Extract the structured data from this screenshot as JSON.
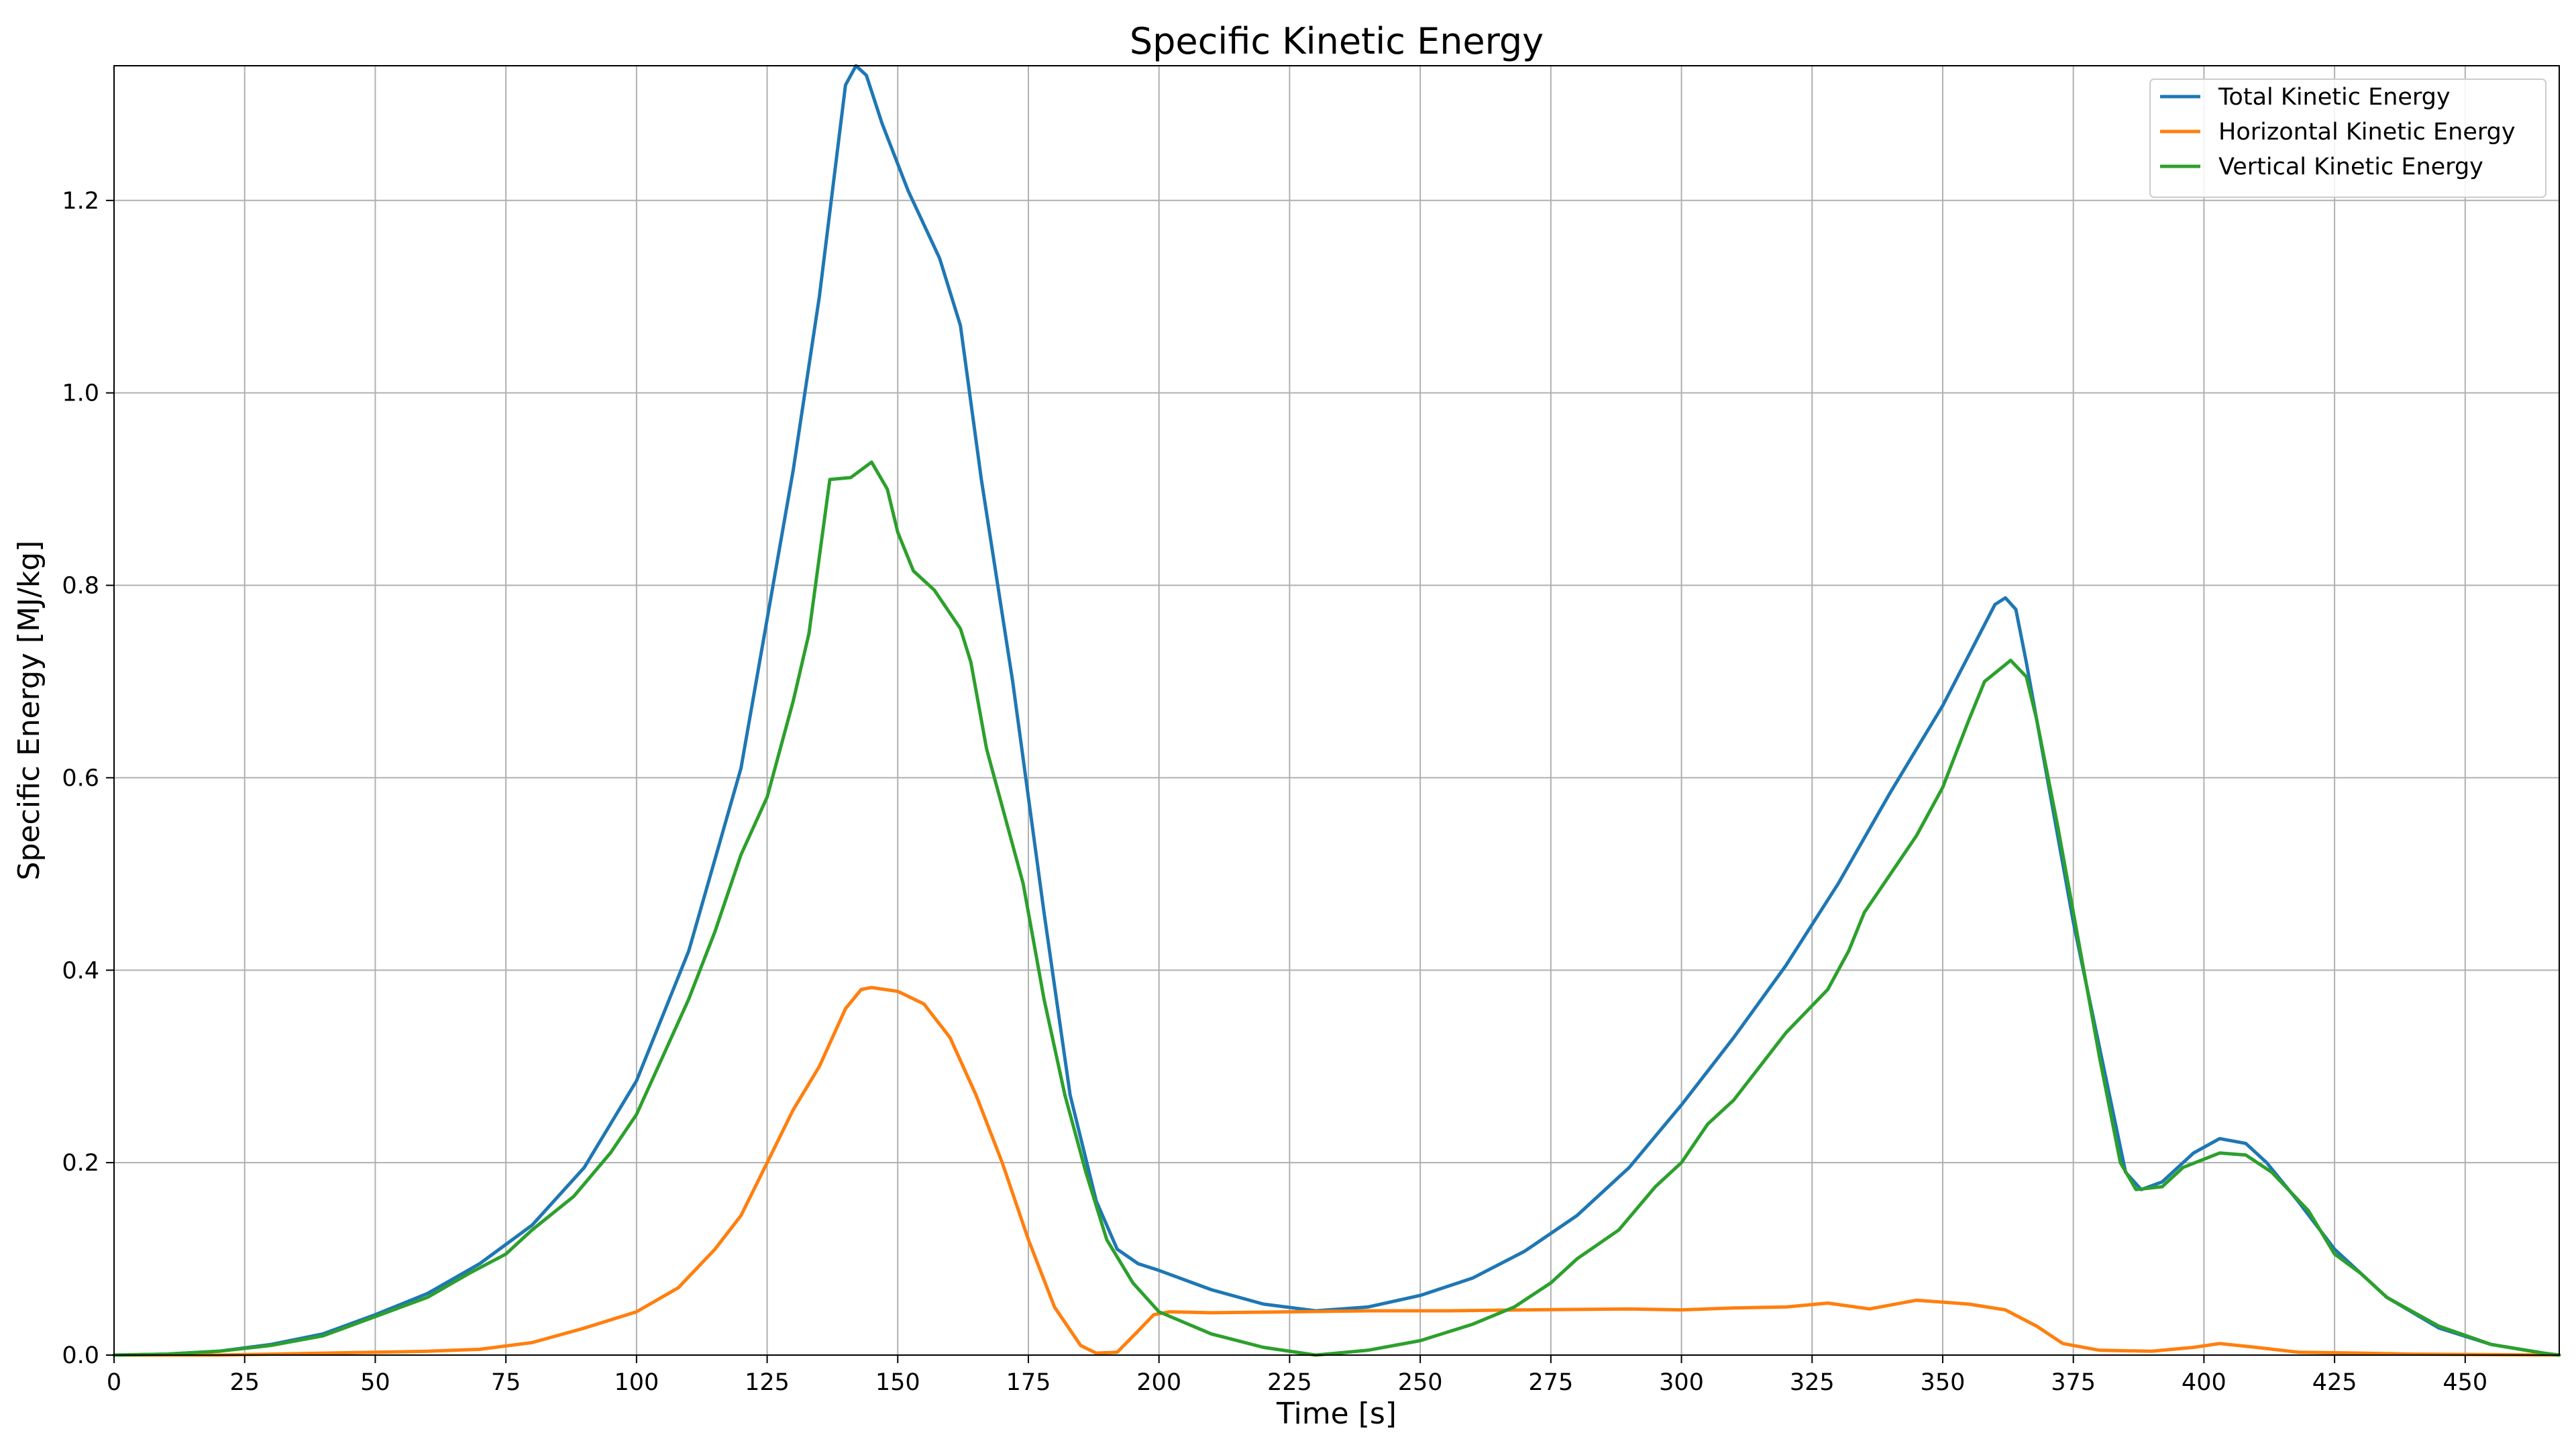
{
  "chart_data": {
    "type": "line",
    "title": "Specific Kinetic Energy",
    "xlabel": "Time [s]",
    "ylabel": "Specific Energy [MJ/kg]",
    "xlim": [
      0,
      468
    ],
    "ylim": [
      0,
      1.34
    ],
    "xticks": [
      "0",
      "25",
      "50",
      "75",
      "100",
      "125",
      "150",
      "175",
      "200",
      "225",
      "250",
      "275",
      "300",
      "325",
      "350",
      "375",
      "400",
      "425",
      "450"
    ],
    "yticks": [
      "0.0",
      "0.2",
      "0.4",
      "0.6",
      "0.8",
      "1.0",
      "1.2"
    ],
    "grid": true,
    "legend_position": "top-right",
    "series": [
      {
        "name": "Total Kinetic Energy",
        "color": "#1f77b4",
        "points": [
          [
            0,
            0
          ],
          [
            10,
            0.001
          ],
          [
            20,
            0.004
          ],
          [
            30,
            0.011
          ],
          [
            40,
            0.022
          ],
          [
            50,
            0.042
          ],
          [
            60,
            0.064
          ],
          [
            70,
            0.095
          ],
          [
            80,
            0.135
          ],
          [
            90,
            0.195
          ],
          [
            100,
            0.285
          ],
          [
            110,
            0.42
          ],
          [
            120,
            0.61
          ],
          [
            130,
            0.92
          ],
          [
            135,
            1.1
          ],
          [
            140,
            1.32
          ],
          [
            142,
            1.34
          ],
          [
            144,
            1.33
          ],
          [
            147,
            1.28
          ],
          [
            152,
            1.21
          ],
          [
            158,
            1.14
          ],
          [
            162,
            1.07
          ],
          [
            166,
            0.91
          ],
          [
            172,
            0.7
          ],
          [
            178,
            0.46
          ],
          [
            183,
            0.27
          ],
          [
            188,
            0.16
          ],
          [
            192,
            0.11
          ],
          [
            196,
            0.095
          ],
          [
            200,
            0.088
          ],
          [
            210,
            0.068
          ],
          [
            220,
            0.053
          ],
          [
            230,
            0.046
          ],
          [
            240,
            0.05
          ],
          [
            250,
            0.062
          ],
          [
            260,
            0.08
          ],
          [
            270,
            0.108
          ],
          [
            280,
            0.145
          ],
          [
            290,
            0.195
          ],
          [
            300,
            0.26
          ],
          [
            310,
            0.33
          ],
          [
            320,
            0.405
          ],
          [
            330,
            0.49
          ],
          [
            340,
            0.585
          ],
          [
            350,
            0.675
          ],
          [
            360,
            0.78
          ],
          [
            362,
            0.787
          ],
          [
            364,
            0.775
          ],
          [
            366,
            0.72
          ],
          [
            370,
            0.6
          ],
          [
            375,
            0.45
          ],
          [
            380,
            0.32
          ],
          [
            385,
            0.19
          ],
          [
            388,
            0.172
          ],
          [
            392,
            0.18
          ],
          [
            398,
            0.21
          ],
          [
            403,
            0.225
          ],
          [
            408,
            0.22
          ],
          [
            412,
            0.2
          ],
          [
            418,
            0.16
          ],
          [
            425,
            0.11
          ],
          [
            435,
            0.06
          ],
          [
            445,
            0.028
          ],
          [
            455,
            0.011
          ],
          [
            465,
            0.002
          ],
          [
            468,
            0
          ]
        ]
      },
      {
        "name": "Horizontal Kinetic Energy",
        "color": "#ff7f0e",
        "points": [
          [
            0,
            0
          ],
          [
            20,
            0.0
          ],
          [
            30,
            0.001
          ],
          [
            50,
            0.003
          ],
          [
            60,
            0.004
          ],
          [
            70,
            0.006
          ],
          [
            80,
            0.013
          ],
          [
            90,
            0.028
          ],
          [
            100,
            0.045
          ],
          [
            108,
            0.07
          ],
          [
            115,
            0.11
          ],
          [
            120,
            0.145
          ],
          [
            125,
            0.2
          ],
          [
            130,
            0.255
          ],
          [
            135,
            0.3
          ],
          [
            140,
            0.36
          ],
          [
            143,
            0.38
          ],
          [
            145,
            0.382
          ],
          [
            150,
            0.378
          ],
          [
            155,
            0.365
          ],
          [
            160,
            0.33
          ],
          [
            165,
            0.27
          ],
          [
            170,
            0.2
          ],
          [
            175,
            0.12
          ],
          [
            180,
            0.05
          ],
          [
            185,
            0.01
          ],
          [
            188,
            0.002
          ],
          [
            192,
            0.003
          ],
          [
            196,
            0.025
          ],
          [
            199,
            0.042
          ],
          [
            202,
            0.045
          ],
          [
            210,
            0.044
          ],
          [
            225,
            0.045
          ],
          [
            240,
            0.046
          ],
          [
            255,
            0.046
          ],
          [
            270,
            0.047
          ],
          [
            290,
            0.048
          ],
          [
            300,
            0.047
          ],
          [
            310,
            0.049
          ],
          [
            320,
            0.05
          ],
          [
            328,
            0.054
          ],
          [
            336,
            0.048
          ],
          [
            345,
            0.057
          ],
          [
            355,
            0.053
          ],
          [
            362,
            0.047
          ],
          [
            368,
            0.03
          ],
          [
            373,
            0.012
          ],
          [
            380,
            0.005
          ],
          [
            390,
            0.004
          ],
          [
            398,
            0.008
          ],
          [
            403,
            0.012
          ],
          [
            410,
            0.008
          ],
          [
            418,
            0.003
          ],
          [
            430,
            0.002
          ],
          [
            440,
            0.001
          ],
          [
            468,
            0
          ]
        ]
      },
      {
        "name": "Vertical Kinetic Energy",
        "color": "#2ca02c",
        "points": [
          [
            0,
            0
          ],
          [
            10,
            0.001
          ],
          [
            20,
            0.004
          ],
          [
            30,
            0.01
          ],
          [
            40,
            0.02
          ],
          [
            50,
            0.04
          ],
          [
            60,
            0.06
          ],
          [
            68,
            0.085
          ],
          [
            75,
            0.105
          ],
          [
            80,
            0.13
          ],
          [
            88,
            0.165
          ],
          [
            95,
            0.21
          ],
          [
            100,
            0.25
          ],
          [
            105,
            0.31
          ],
          [
            110,
            0.37
          ],
          [
            115,
            0.44
          ],
          [
            120,
            0.52
          ],
          [
            125,
            0.58
          ],
          [
            130,
            0.68
          ],
          [
            133,
            0.75
          ],
          [
            137,
            0.91
          ],
          [
            141,
            0.912
          ],
          [
            145,
            0.928
          ],
          [
            148,
            0.9
          ],
          [
            150,
            0.855
          ],
          [
            153,
            0.815
          ],
          [
            157,
            0.795
          ],
          [
            162,
            0.755
          ],
          [
            164,
            0.72
          ],
          [
            167,
            0.63
          ],
          [
            170,
            0.57
          ],
          [
            174,
            0.49
          ],
          [
            178,
            0.37
          ],
          [
            182,
            0.27
          ],
          [
            186,
            0.19
          ],
          [
            190,
            0.12
          ],
          [
            195,
            0.075
          ],
          [
            200,
            0.045
          ],
          [
            210,
            0.022
          ],
          [
            220,
            0.008
          ],
          [
            230,
            0.0
          ],
          [
            240,
            0.005
          ],
          [
            250,
            0.015
          ],
          [
            260,
            0.032
          ],
          [
            268,
            0.05
          ],
          [
            275,
            0.075
          ],
          [
            280,
            0.1
          ],
          [
            288,
            0.13
          ],
          [
            295,
            0.175
          ],
          [
            300,
            0.2
          ],
          [
            305,
            0.24
          ],
          [
            310,
            0.265
          ],
          [
            315,
            0.3
          ],
          [
            320,
            0.335
          ],
          [
            328,
            0.38
          ],
          [
            332,
            0.42
          ],
          [
            335,
            0.46
          ],
          [
            340,
            0.5
          ],
          [
            345,
            0.54
          ],
          [
            350,
            0.59
          ],
          [
            355,
            0.66
          ],
          [
            358,
            0.7
          ],
          [
            363,
            0.722
          ],
          [
            366,
            0.705
          ],
          [
            368,
            0.66
          ],
          [
            372,
            0.55
          ],
          [
            376,
            0.43
          ],
          [
            380,
            0.31
          ],
          [
            384,
            0.2
          ],
          [
            387,
            0.172
          ],
          [
            392,
            0.175
          ],
          [
            396,
            0.195
          ],
          [
            403,
            0.21
          ],
          [
            408,
            0.208
          ],
          [
            413,
            0.19
          ],
          [
            420,
            0.15
          ],
          [
            425,
            0.105
          ],
          [
            430,
            0.085
          ],
          [
            435,
            0.06
          ],
          [
            445,
            0.03
          ],
          [
            455,
            0.011
          ],
          [
            465,
            0.002
          ],
          [
            468,
            0
          ]
        ]
      }
    ]
  }
}
